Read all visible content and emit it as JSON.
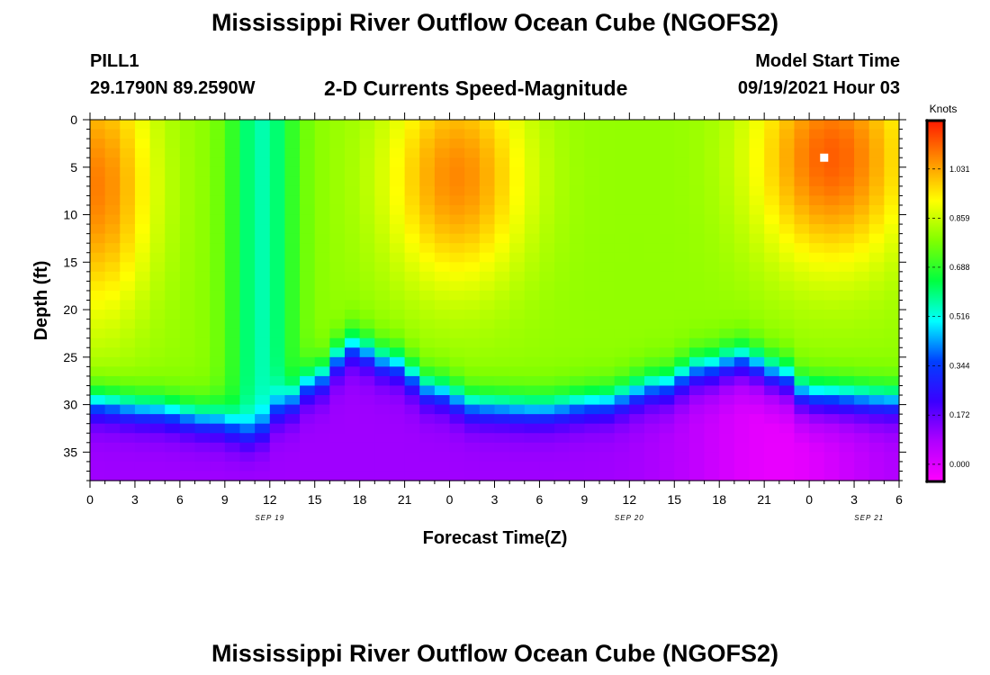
{
  "page": {
    "title_top": "Mississippi River Outflow Ocean Cube (NGOFS2)",
    "title_bottom": "Mississippi River Outflow Ocean Cube (NGOFS2)",
    "station": "PILL1",
    "coords": "29.1790N  89.2590W",
    "subtitle": "2-D Currents Speed-Magnitude",
    "model_label": "Model Start Time",
    "model_time": "09/19/2021 Hour 03"
  },
  "chart_data": {
    "type": "heatmap",
    "title": "2-D Currents Speed-Magnitude",
    "xlabel": "Forecast Time(Z)",
    "ylabel": "Depth (ft)",
    "colorbar_label": "Knots",
    "xlim": [
      0,
      54
    ],
    "ylim": [
      38,
      0
    ],
    "x_ticks": [
      0,
      3,
      6,
      9,
      12,
      15,
      18,
      21,
      24,
      27,
      30,
      33,
      36,
      39,
      42,
      45,
      48,
      51,
      54
    ],
    "x_tick_labels": [
      "0",
      "3",
      "6",
      "9",
      "12",
      "15",
      "18",
      "21",
      "0",
      "3",
      "6",
      "9",
      "12",
      "15",
      "18",
      "21",
      "0",
      "3",
      "6"
    ],
    "y_ticks": [
      0,
      5,
      10,
      15,
      20,
      25,
      30,
      35
    ],
    "y_tick_labels": [
      "0",
      "5",
      "10",
      "15",
      "20",
      "25",
      "30",
      "35"
    ],
    "date_labels": [
      {
        "x": 12,
        "text": "SEP 19"
      },
      {
        "x": 36,
        "text": "SEP 20"
      },
      {
        "x": 52,
        "text": "SEP 21"
      }
    ],
    "colorbar_ticks": [
      0.0,
      0.172,
      0.344,
      0.516,
      0.688,
      0.859,
      1.031
    ],
    "colorbar_tick_labels": [
      "0.000",
      "0.172",
      "0.344",
      "0.516",
      "0.688",
      "0.859",
      "1.031"
    ],
    "color_range": [
      -0.06,
      1.2
    ],
    "colorscale": [
      "#ff00ff",
      "#b000ff",
      "#3a00ff",
      "#0040ff",
      "#00ffff",
      "#00ff40",
      "#80ff00",
      "#ffff00",
      "#ff9000",
      "#ff1a00"
    ],
    "max_marker": {
      "x": 49,
      "depth": 4,
      "label": "max"
    },
    "cells_x": 54,
    "cells_depth": 38,
    "features": {
      "fast_cores": [
        {
          "x_center": 0.5,
          "depth_center": 7,
          "x_spread": 3.5,
          "depth_spread": 13,
          "speed": 1.08
        },
        {
          "x_center": 24.5,
          "depth_center": 6,
          "x_spread": 4.5,
          "depth_spread": 11,
          "speed": 1.07
        },
        {
          "x_center": 49.5,
          "depth_center": 4,
          "x_spread": 5,
          "depth_spread": 11,
          "speed": 1.12
        }
      ],
      "background_speed": 0.8,
      "slow_band": {
        "x_center": 11.5,
        "x_spread": 2.2,
        "speed": 0.56
      },
      "transition_depth": [
        {
          "x": 0,
          "depth": 29.8
        },
        {
          "x": 4,
          "depth": 30.5
        },
        {
          "x": 8,
          "depth": 31.5
        },
        {
          "x": 11,
          "depth": 33
        },
        {
          "x": 13,
          "depth": 30
        },
        {
          "x": 15,
          "depth": 27.5
        },
        {
          "x": 17.5,
          "depth": 23.8
        },
        {
          "x": 20,
          "depth": 25.5
        },
        {
          "x": 23,
          "depth": 28.5
        },
        {
          "x": 26,
          "depth": 30.2
        },
        {
          "x": 30,
          "depth": 30.5
        },
        {
          "x": 34,
          "depth": 29.8
        },
        {
          "x": 38,
          "depth": 28
        },
        {
          "x": 41,
          "depth": 26
        },
        {
          "x": 43.5,
          "depth": 25
        },
        {
          "x": 46,
          "depth": 26.5
        },
        {
          "x": 48,
          "depth": 28.8
        },
        {
          "x": 54,
          "depth": 29.5
        }
      ],
      "bottom_speed": 0.1,
      "bottom_min_x": 46
    }
  }
}
